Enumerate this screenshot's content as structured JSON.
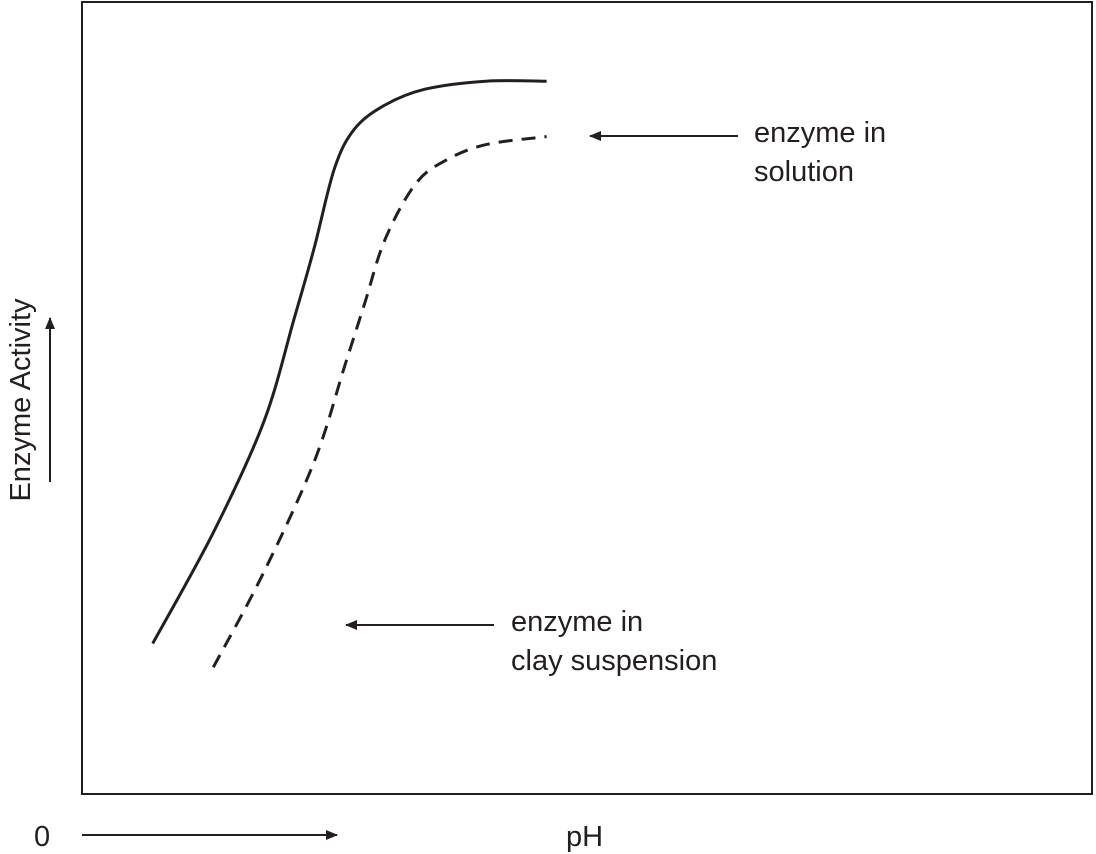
{
  "chart_data": {
    "type": "line",
    "xlabel": "pH",
    "ylabel": "Enzyme Activity",
    "origin_label": "0",
    "xlim": [
      0,
      1
    ],
    "ylim": [
      0,
      1
    ],
    "grid": false,
    "series": [
      {
        "name": "enzyme in solution",
        "label_lines": [
          "enzyme in",
          "solution"
        ],
        "style": "solid",
        "x": [
          0.07,
          0.13,
          0.18,
          0.21,
          0.23,
          0.25,
          0.27,
          0.3,
          0.34,
          0.4,
          0.46
        ],
        "y": [
          0.19,
          0.33,
          0.47,
          0.6,
          0.69,
          0.79,
          0.84,
          0.87,
          0.89,
          0.9,
          0.9
        ]
      },
      {
        "name": "enzyme in clay suspension",
        "label_lines": [
          "enzyme in",
          "clay suspension"
        ],
        "style": "dashed",
        "x": [
          0.13,
          0.18,
          0.23,
          0.26,
          0.28,
          0.3,
          0.33,
          0.36,
          0.4,
          0.46
        ],
        "y": [
          0.16,
          0.28,
          0.42,
          0.54,
          0.62,
          0.7,
          0.77,
          0.8,
          0.82,
          0.83
        ]
      }
    ]
  },
  "colors": {
    "ink": "#231f20",
    "background": "#ffffff"
  }
}
